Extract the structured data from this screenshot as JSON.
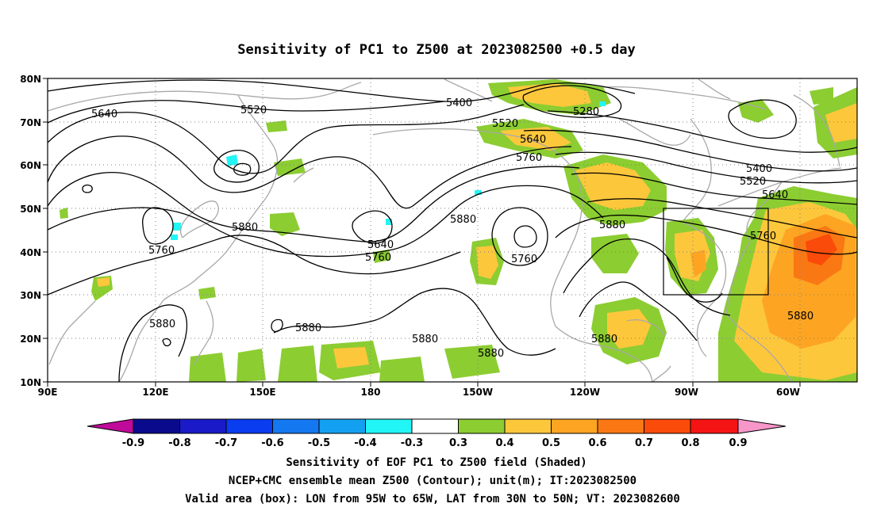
{
  "title": "Sensitivity of PC1 to Z500 at 2023082500 +0.5 day",
  "lat_labels": [
    "80N",
    "70N",
    "60N",
    "50N",
    "40N",
    "30N",
    "20N",
    "10N"
  ],
  "lon_labels": [
    "90E",
    "120E",
    "150E",
    "180",
    "150W",
    "120W",
    "90W",
    "60W"
  ],
  "contour_labels": [
    {
      "text": "5640",
      "kind": "z500"
    },
    {
      "text": "5520",
      "kind": "z500"
    },
    {
      "text": "5400",
      "kind": "z500"
    },
    {
      "text": "5280",
      "kind": "z500"
    },
    {
      "text": "5520",
      "kind": "z500"
    },
    {
      "text": "5640",
      "kind": "z500"
    },
    {
      "text": "5760",
      "kind": "z500"
    },
    {
      "text": "5400",
      "kind": "z500"
    },
    {
      "text": "5520",
      "kind": "z500"
    },
    {
      "text": "5640",
      "kind": "z500"
    },
    {
      "text": "5880",
      "kind": "z500"
    },
    {
      "text": "5760",
      "kind": "z500"
    },
    {
      "text": "5880",
      "kind": "z500"
    },
    {
      "text": "5640",
      "kind": "z500"
    },
    {
      "text": "5760",
      "kind": "z500"
    },
    {
      "text": "5880",
      "kind": "z500"
    },
    {
      "text": "5760",
      "kind": "z500"
    },
    {
      "text": "5760",
      "kind": "z500"
    },
    {
      "text": "5880",
      "kind": "z500"
    },
    {
      "text": "5880",
      "kind": "z500"
    },
    {
      "text": "5880",
      "kind": "z500"
    },
    {
      "text": "5880",
      "kind": "z500"
    },
    {
      "text": "5880",
      "kind": "z500"
    },
    {
      "text": "5880",
      "kind": "z500"
    }
  ],
  "colorbar": {
    "colors": [
      "#c00a9a",
      "#0a0a8c",
      "#1a1ac8",
      "#0a3cf0",
      "#1478f0",
      "#14a0f0",
      "#1ed2f0",
      "#22f5f5",
      "#ffffff",
      "#8ccd32",
      "#fdc73c",
      "#fda522",
      "#fa7814",
      "#fa4b0a",
      "#f51414",
      "#f796c8"
    ],
    "labels": [
      "-0.9",
      "-0.8",
      "-0.7",
      "-0.6",
      "-0.5",
      "-0.4",
      "-0.3",
      "0.3",
      "0.4",
      "0.5",
      "0.6",
      "0.7",
      "0.8",
      "0.9"
    ]
  },
  "footer": [
    "Sensitivity of EOF PC1 to Z500 field (Shaded)",
    "NCEP+CMC ensemble mean Z500 (Contour); unit(m); IT:2023082500",
    "Valid area (box): LON from 95W to 65W, LAT from 30N to 50N; VT: 2023082600"
  ],
  "valid_box": {
    "lon_min": -95,
    "lon_max": -65,
    "lat_min": 30,
    "lat_max": 50
  }
}
